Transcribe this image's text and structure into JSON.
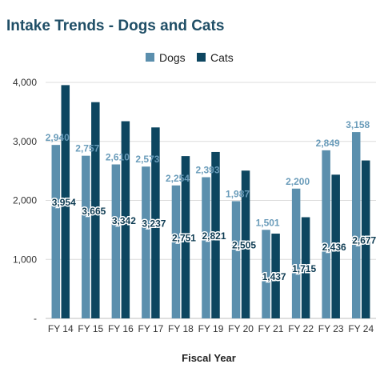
{
  "chart_data": {
    "type": "bar",
    "title": "Intake Trends - Dogs and Cats",
    "xlabel": "Fiscal Year",
    "ylabel": "",
    "ylim": [
      0,
      4000
    ],
    "yticks": [
      "-",
      "1,000",
      "2,000",
      "3,000",
      "4,000"
    ],
    "yticks_values": [
      0,
      1000,
      2000,
      3000,
      4000
    ],
    "grid": true,
    "legend_position": "top",
    "categories": [
      "FY 14",
      "FY 15",
      "FY 16",
      "FY 17",
      "FY 18",
      "FY 19",
      "FY 20",
      "FY 21",
      "FY 22",
      "FY 23",
      "FY 24"
    ],
    "series": [
      {
        "name": "Dogs",
        "color": "#5b8fad",
        "values": [
          2940,
          2757,
          2610,
          2573,
          2254,
          2393,
          1987,
          1501,
          2200,
          2849,
          3158
        ],
        "labels": [
          "2,940",
          "2,757",
          "2,610",
          "2,573",
          "2,254",
          "2,393",
          "1,987",
          "1,501",
          "2,200",
          "2,849",
          "3,158"
        ]
      },
      {
        "name": "Cats",
        "color": "#0d4660",
        "values": [
          3954,
          3665,
          3342,
          3237,
          2751,
          2821,
          2505,
          1437,
          1715,
          2436,
          2677
        ],
        "labels": [
          "3,954",
          "3,665",
          "3,342",
          "3,237",
          "2,751",
          "2,821",
          "2,505",
          "1,437",
          "1,715",
          "2,436",
          "2,677"
        ]
      }
    ]
  }
}
